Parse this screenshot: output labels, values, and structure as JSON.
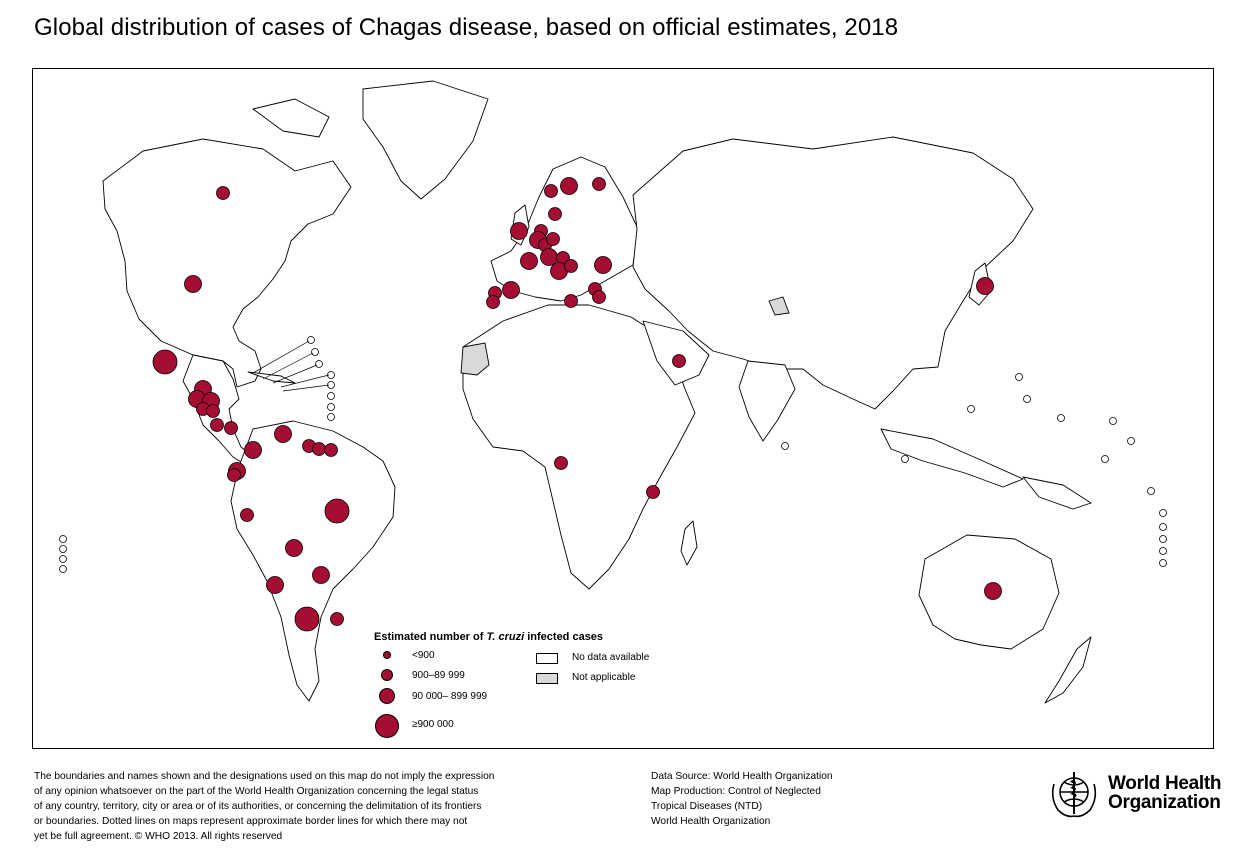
{
  "title": "Global distribution of cases of Chagas disease, based on official estimates, 2018",
  "colors": {
    "case_marker": "#a50d32",
    "land_fill": "#ffffff",
    "not_applicable_fill": "#d9d9d9",
    "border_stroke": "#000000"
  },
  "legend": {
    "title_prefix": "Estimated number of ",
    "title_italic": "T. cruzi",
    "title_suffix": " infected cases",
    "size_classes": [
      {
        "label": "<900"
      },
      {
        "label": "900–89 999"
      },
      {
        "label": "90 000– 899 999"
      },
      {
        "label": "≥900 000"
      }
    ],
    "no_data_label": "No data available",
    "not_applicable_label": "Not applicable"
  },
  "disclaimer_lines": [
    "The boundaries and names shown and the designations used on this map do not imply the expression",
    "of any opinion whatsoever on the part of the World Health Organization concerning the legal status",
    "of any country, territory, city or area or of its authorities, or concerning the delimitation of its frontiers",
    "or boundaries. Dotted lines on maps represent approximate border lines for which there may not",
    "yet be full agreement. © WHO 2013. All rights reserved"
  ],
  "credits_lines": [
    "Data Source: World Health Organization",
    "Map Production: Control of Neglected",
    "Tropical Diseases (NTD)",
    "World Health Organization"
  ],
  "logo": {
    "line1": "World Health",
    "line2": "Organization"
  }
}
